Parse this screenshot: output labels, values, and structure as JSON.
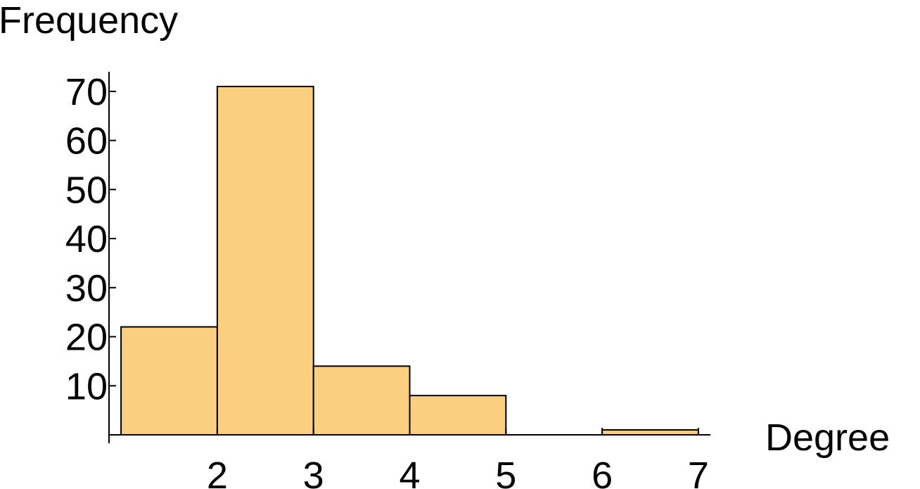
{
  "chart_data": {
    "type": "histogram",
    "xlabel": "Degree",
    "ylabel": "Frequency",
    "bins": [
      1,
      2,
      3,
      4,
      5,
      6,
      7
    ],
    "values": [
      22,
      71,
      14,
      8,
      0,
      1
    ],
    "color": "#facf80",
    "xlim": [
      0.875,
      7.125
    ],
    "xticks": [
      2,
      3,
      4,
      5,
      6,
      7
    ],
    "ylim": [
      0,
      74
    ],
    "yticks": [
      10,
      20,
      30,
      40,
      50,
      60,
      70
    ]
  }
}
